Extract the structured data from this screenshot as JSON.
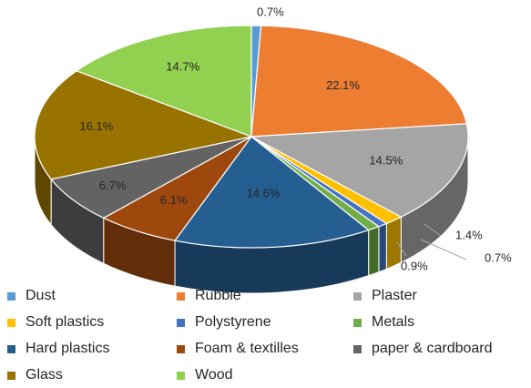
{
  "chart_data": {
    "type": "pie",
    "style": "3d-pie",
    "legend_position": "bottom",
    "title": "",
    "slices": [
      {
        "name": "Dust",
        "value": 0.7,
        "label": "0.7%",
        "color": "#5b9bd5"
      },
      {
        "name": "Rubble",
        "value": 22.1,
        "label": "22.1%",
        "color": "#ed7d31"
      },
      {
        "name": "Plaster",
        "value": 14.5,
        "label": "14.5%",
        "color": "#a5a5a5"
      },
      {
        "name": "Soft plastics",
        "value": 1.4,
        "label": "1.4%",
        "color": "#ffc000"
      },
      {
        "name": "Polystyrene",
        "value": 0.7,
        "label": "0.7%",
        "color": "#4472c4"
      },
      {
        "name": "Metals",
        "value": 0.9,
        "label": "0.9%",
        "color": "#70ad47"
      },
      {
        "name": "Hard plastics",
        "value": 14.6,
        "label": "14.6%",
        "color": "#255e91"
      },
      {
        "name": "Foam & textilles",
        "value": 6.1,
        "label": "6.1%",
        "color": "#9e480e"
      },
      {
        "name": "paper & cardboard",
        "value": 6.7,
        "label": "6.7%",
        "color": "#636363"
      },
      {
        "name": "Glass",
        "value": 16.1,
        "label": "16.1%",
        "color": "#997300"
      },
      {
        "name": "Wood",
        "value": 14.7,
        "label": "14.7%",
        "color": "#92d050"
      }
    ]
  }
}
